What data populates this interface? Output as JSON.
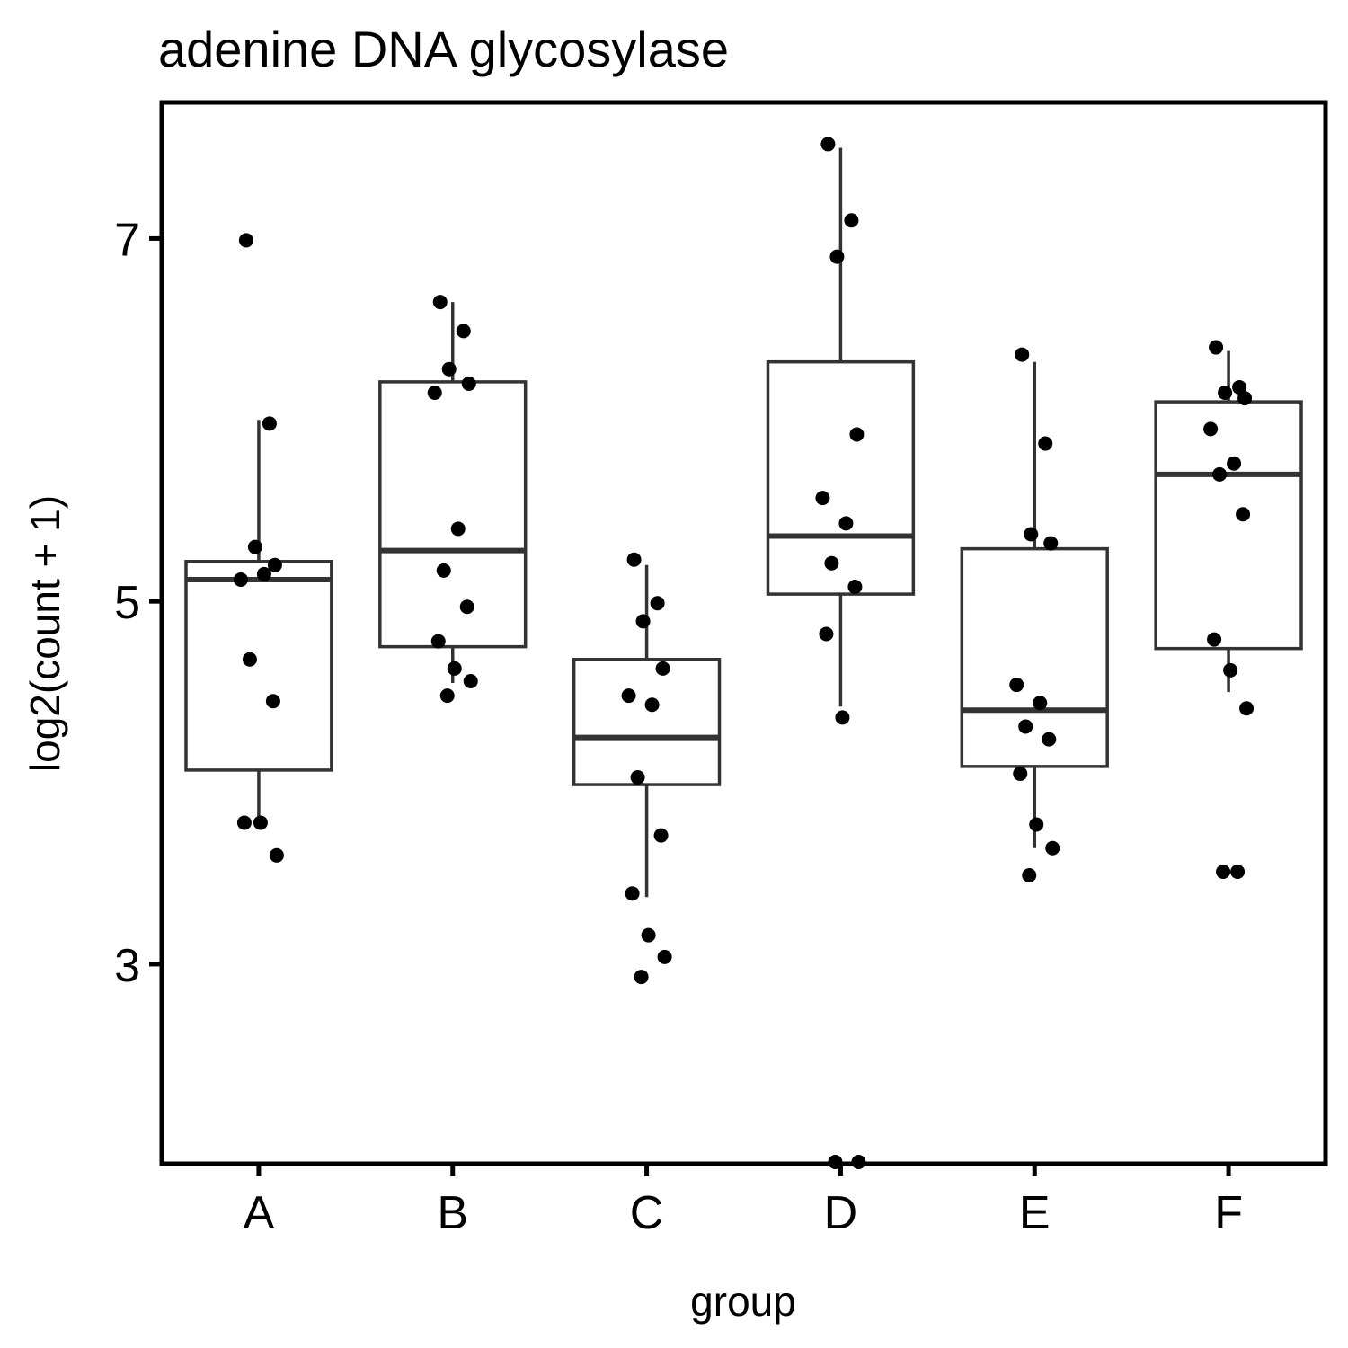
{
  "chart_data": {
    "type": "box",
    "title": "adenine DNA glycosylase",
    "xlabel": "group",
    "ylabel": "log2(count + 1)",
    "ylim": [
      1.9,
      7.75
    ],
    "yticks": [
      3,
      5,
      7
    ],
    "categories": [
      "A",
      "B",
      "C",
      "D",
      "E",
      "F"
    ],
    "colors": {
      "box_line": "#333333",
      "point": "#000000",
      "frame": "#000000"
    },
    "boxes": [
      {
        "group": "A",
        "lower_whisker": 3.75,
        "q1": 4.07,
        "median": 5.12,
        "q3": 5.22,
        "upper_whisker": 6.0
      },
      {
        "group": "B",
        "lower_whisker": 4.55,
        "q1": 4.75,
        "median": 5.28,
        "q3": 6.21,
        "upper_whisker": 6.65
      },
      {
        "group": "C",
        "lower_whisker": 3.37,
        "q1": 3.99,
        "median": 4.25,
        "q3": 4.68,
        "upper_whisker": 5.2
      },
      {
        "group": "D",
        "lower_whisker": 4.42,
        "q1": 5.04,
        "median": 5.36,
        "q3": 6.32,
        "upper_whisker": 7.5
      },
      {
        "group": "E",
        "lower_whisker": 3.64,
        "q1": 4.09,
        "median": 4.4,
        "q3": 5.29,
        "upper_whisker": 6.32
      },
      {
        "group": "F",
        "lower_whisker": 4.5,
        "q1": 4.74,
        "median": 5.7,
        "q3": 6.1,
        "upper_whisker": 6.38
      }
    ],
    "points": [
      {
        "group": "A",
        "values": [
          6.99,
          5.98,
          5.3,
          5.2,
          5.12,
          5.15,
          4.68,
          4.45,
          3.78,
          3.78,
          3.6
        ]
      },
      {
        "group": "B",
        "values": [
          6.65,
          6.49,
          6.28,
          6.2,
          6.15,
          5.4,
          5.17,
          4.97,
          4.78,
          4.63,
          4.56,
          4.48
        ]
      },
      {
        "group": "C",
        "values": [
          5.23,
          4.99,
          4.89,
          4.63,
          4.48,
          4.43,
          4.03,
          3.71,
          3.39,
          3.16,
          3.04,
          2.93
        ]
      },
      {
        "group": "D",
        "values": [
          7.52,
          7.1,
          6.9,
          5.92,
          5.57,
          5.43,
          5.21,
          5.08,
          4.82,
          4.36,
          1.91,
          1.91
        ]
      },
      {
        "group": "E",
        "values": [
          6.36,
          5.87,
          5.37,
          5.32,
          4.54,
          4.44,
          4.31,
          4.24,
          4.05,
          3.77,
          3.64,
          3.49
        ]
      },
      {
        "group": "F",
        "values": [
          6.4,
          6.18,
          6.15,
          6.12,
          5.95,
          5.76,
          5.7,
          5.48,
          4.79,
          4.62,
          4.41,
          3.51,
          3.51
        ]
      }
    ]
  }
}
